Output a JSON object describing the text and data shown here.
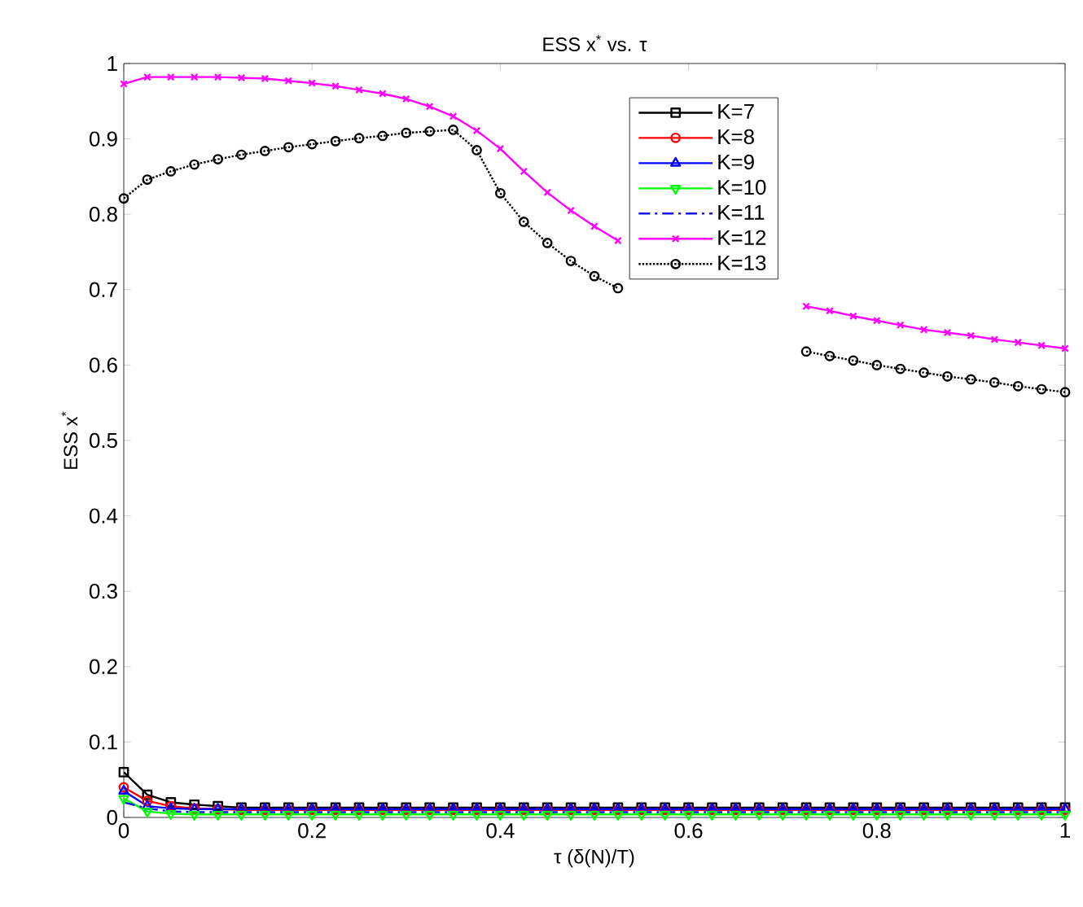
{
  "chart_data": {
    "type": "line",
    "title": "ESS x$^{*}$ vs. τ",
    "xlabel": "τ (δ(N)/T)",
    "ylabel": "ESS x$^{*}$",
    "x": [
      0,
      0.025,
      0.05,
      0.075,
      0.1,
      0.125,
      0.15,
      0.175,
      0.2,
      0.225,
      0.25,
      0.275,
      0.3,
      0.325,
      0.35,
      0.375,
      0.4,
      0.425,
      0.45,
      0.475,
      0.5,
      0.525,
      0.55,
      0.575,
      0.6,
      0.625,
      0.65,
      0.675,
      0.7,
      0.725,
      0.75,
      0.775,
      0.8,
      0.825,
      0.85,
      0.875,
      0.9,
      0.925,
      0.95,
      0.975,
      1
    ],
    "xlim": [
      0,
      1
    ],
    "xticks": [
      0,
      0.2,
      0.4,
      0.6,
      0.8,
      1
    ],
    "ylim": [
      0,
      1
    ],
    "yticks": [
      0,
      0.1,
      0.2,
      0.3,
      0.4,
      0.5,
      0.6,
      0.7,
      0.8,
      0.9,
      1
    ],
    "grid": false,
    "legend": "top right",
    "series": [
      {
        "name": "K=7",
        "color": "#000000",
        "marker": "square",
        "line_style": "solid",
        "values": [
          0.06,
          0.03,
          0.02,
          0.017,
          0.015,
          0.013,
          0.013,
          0.013,
          0.013,
          0.013,
          0.013,
          0.013,
          0.013,
          0.013,
          0.013,
          0.013,
          0.013,
          0.013,
          0.013,
          0.013,
          0.013,
          0.013,
          0.013,
          0.013,
          0.013,
          0.013,
          0.013,
          0.013,
          0.013,
          0.013,
          0.013,
          0.013,
          0.013,
          0.013,
          0.013,
          0.013,
          0.013,
          0.013,
          0.013,
          0.013,
          0.013
        ]
      },
      {
        "name": "K=8",
        "color": "#ff0000",
        "marker": "circle",
        "line_style": "solid",
        "values": [
          0.04,
          0.022,
          0.015,
          0.012,
          0.011,
          0.01,
          0.01,
          0.01,
          0.01,
          0.01,
          0.01,
          0.01,
          0.01,
          0.01,
          0.01,
          0.01,
          0.01,
          0.01,
          0.01,
          0.01,
          0.01,
          0.01,
          0.01,
          0.01,
          0.01,
          0.01,
          0.01,
          0.01,
          0.01,
          0.01,
          0.01,
          0.01,
          0.01,
          0.01,
          0.01,
          0.01,
          0.01,
          0.01,
          0.01,
          0.01,
          0.01
        ]
      },
      {
        "name": "K=9",
        "color": "#0000ff",
        "marker": "triangle",
        "line_style": "solid",
        "values": [
          0.035,
          0.015,
          0.012,
          0.011,
          0.011,
          0.011,
          0.011,
          0.011,
          0.011,
          0.011,
          0.011,
          0.011,
          0.011,
          0.011,
          0.011,
          0.011,
          0.011,
          0.011,
          0.011,
          0.011,
          0.011,
          0.011,
          0.011,
          0.011,
          0.011,
          0.011,
          0.011,
          0.011,
          0.011,
          0.011,
          0.011,
          0.011,
          0.011,
          0.011,
          0.011,
          0.011,
          0.011,
          0.011,
          0.011,
          0.011,
          0.011
        ]
      },
      {
        "name": "K=10",
        "color": "#00ff00",
        "marker": "triangle-down",
        "line_style": "solid",
        "values": [
          0.025,
          0.008,
          0.005,
          0.004,
          0.004,
          0.004,
          0.004,
          0.004,
          0.004,
          0.004,
          0.004,
          0.004,
          0.004,
          0.004,
          0.004,
          0.004,
          0.004,
          0.004,
          0.004,
          0.004,
          0.004,
          0.004,
          0.004,
          0.004,
          0.004,
          0.004,
          0.004,
          0.004,
          0.004,
          0.004,
          0.004,
          0.004,
          0.004,
          0.004,
          0.004,
          0.004,
          0.004,
          0.004,
          0.004,
          0.004,
          0.004
        ]
      },
      {
        "name": "K=11",
        "color": "#1414f0",
        "marker": "none",
        "line_style": "dashdot",
        "values": [
          0.02,
          0.012,
          0.008,
          0.007,
          0.007,
          0.007,
          0.007,
          0.007,
          0.007,
          0.007,
          0.007,
          0.007,
          0.007,
          0.007,
          0.007,
          0.007,
          0.007,
          0.007,
          0.007,
          0.007,
          0.007,
          0.007,
          0.007,
          0.007,
          0.007,
          0.007,
          0.007,
          0.007,
          0.007,
          0.007,
          0.007,
          0.007,
          0.007,
          0.007,
          0.007,
          0.007,
          0.007,
          0.007,
          0.007,
          0.007,
          0.007
        ]
      },
      {
        "name": "K=12",
        "color": "#ff00ff",
        "marker": "cross",
        "line_style": "solid",
        "values": [
          0.973,
          0.982,
          0.982,
          0.982,
          0.982,
          0.981,
          0.98,
          0.977,
          0.974,
          0.97,
          0.965,
          0.96,
          0.953,
          0.943,
          0.93,
          0.911,
          0.887,
          0.857,
          0.829,
          0.805,
          0.784,
          0.765,
          null,
          null,
          null,
          null,
          null,
          null,
          null,
          0.678,
          0.672,
          0.665,
          0.659,
          0.653,
          0.647,
          0.643,
          0.639,
          0.634,
          0.63,
          0.626,
          0.622
        ]
      },
      {
        "name": "K=13",
        "color": "#000000",
        "marker": "circle",
        "line_style": "dotted",
        "values": [
          0.821,
          0.846,
          0.857,
          0.866,
          0.873,
          0.879,
          0.884,
          0.889,
          0.893,
          0.897,
          0.901,
          0.904,
          0.908,
          0.91,
          0.912,
          0.885,
          0.828,
          0.79,
          0.762,
          0.738,
          0.718,
          0.702,
          null,
          null,
          null,
          null,
          null,
          null,
          null,
          0.618,
          0.612,
          0.606,
          0.6,
          0.595,
          0.59,
          0.585,
          0.581,
          0.577,
          0.572,
          0.568,
          0.564
        ]
      }
    ]
  }
}
